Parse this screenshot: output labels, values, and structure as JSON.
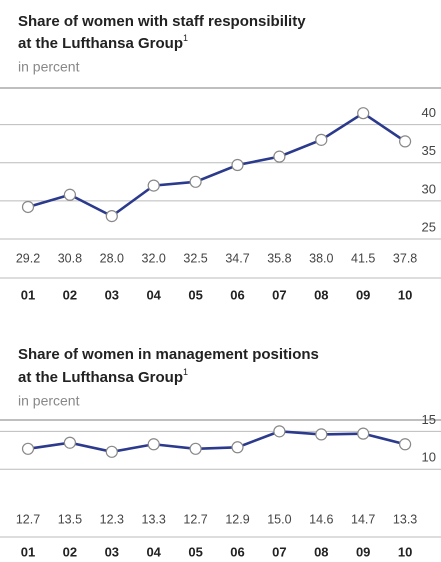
{
  "chart_data": [
    {
      "type": "line",
      "title": [
        "Share of women with staff responsibility",
        "at the Lufthansa Group"
      ],
      "footnote_mark": "1",
      "subtitle": "in percent",
      "categories": [
        "01",
        "02",
        "03",
        "04",
        "05",
        "06",
        "07",
        "08",
        "09",
        "10"
      ],
      "values": [
        29.2,
        30.8,
        28.0,
        32.0,
        32.5,
        34.7,
        35.8,
        38.0,
        41.5,
        37.8
      ],
      "value_labels": [
        "29.2",
        "30.8",
        "28.0",
        "32.0",
        "32.5",
        "34.7",
        "35.8",
        "38.0",
        "41.5",
        "37.8"
      ],
      "color": "#2b3a8c",
      "ylim": [
        25,
        44.8
      ],
      "yticks": [
        25,
        30,
        35,
        40
      ],
      "grid": true
    },
    {
      "type": "line",
      "title": [
        "Share of women in management positions",
        "at the Lufthansa Group"
      ],
      "footnote_mark": "1",
      "subtitle": "in percent",
      "categories": [
        "01",
        "02",
        "03",
        "04",
        "05",
        "06",
        "07",
        "08",
        "09",
        "10"
      ],
      "values": [
        12.7,
        13.5,
        12.3,
        13.3,
        12.7,
        12.9,
        15.0,
        14.6,
        14.7,
        13.3
      ],
      "value_labels": [
        "12.7",
        "13.5",
        "12.3",
        "13.3",
        "12.7",
        "12.9",
        "15.0",
        "14.6",
        "14.7",
        "13.3"
      ],
      "color": "#2b3a8c",
      "ylim": [
        7,
        16.5
      ],
      "yticks": [
        10,
        15
      ],
      "grid": true
    }
  ]
}
